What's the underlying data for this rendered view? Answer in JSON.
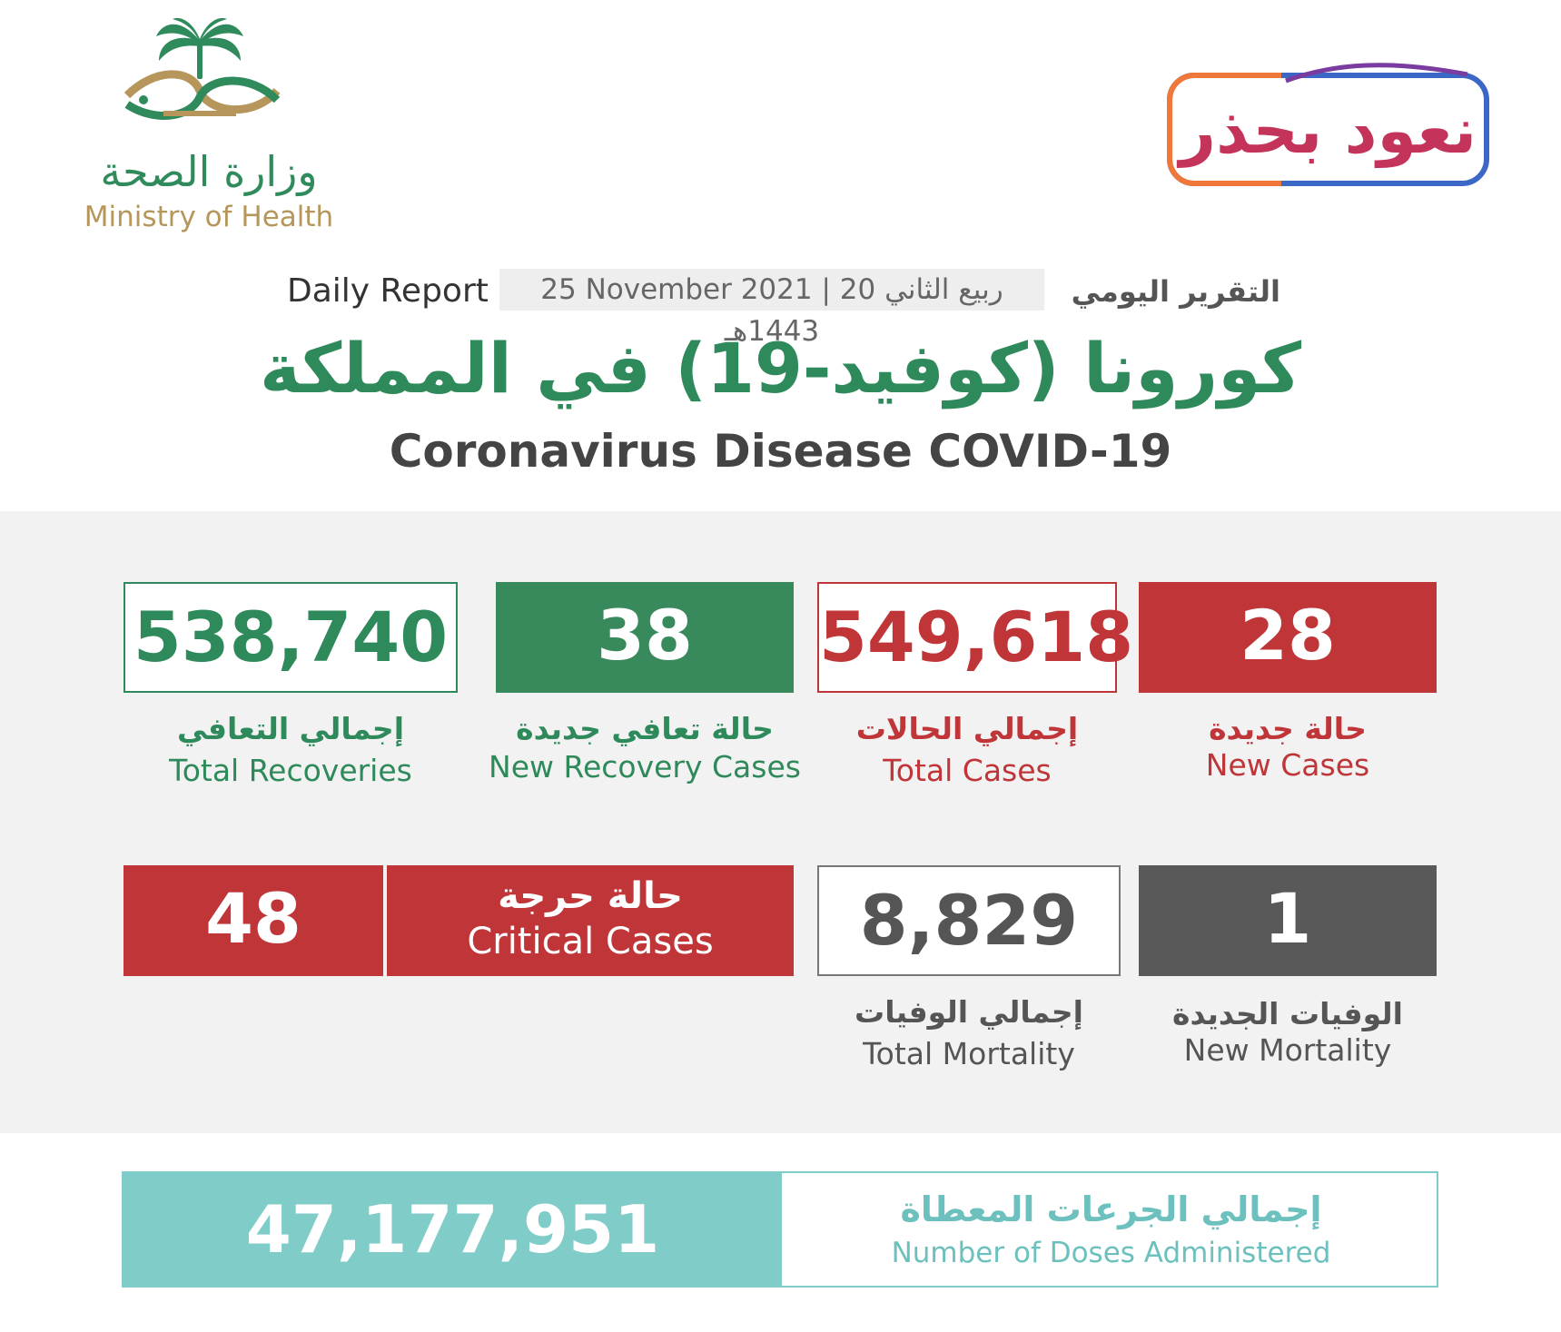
{
  "header": {
    "moh_logo_ar": "وزارة الصحة",
    "moh_logo_en": "Ministry of Health",
    "campaign_logo": "نعود بحذر",
    "daily_report_en": "Daily Report",
    "date": "25 November 2021 | 20 ربيع الثاني 1443هـ",
    "daily_report_ar": "التقرير اليومي",
    "title_ar": "كورونا (كوفيد-19) في المملكة",
    "title_en": "Coronavirus Disease COVID-19"
  },
  "stats": {
    "total_recoveries": {
      "value": "538,740",
      "label_ar": "إجمالي التعافي",
      "label_en": "Total Recoveries"
    },
    "new_recovery_cases": {
      "value": "38",
      "label_ar": "حالة تعافي جديدة",
      "label_en": "New Recovery Cases"
    },
    "total_cases": {
      "value": "549,618",
      "label_ar": "إجمالي الحالات",
      "label_en": "Total Cases"
    },
    "new_cases": {
      "value": "28",
      "label_ar": "حالة جديدة",
      "label_en": "New Cases"
    },
    "critical_cases": {
      "value": "48",
      "label_ar": "حالة حرجة",
      "label_en": "Critical Cases"
    },
    "total_mortality": {
      "value": "8,829",
      "label_ar": "إجمالي الوفيات",
      "label_en": "Total Mortality"
    },
    "new_mortality": {
      "value": "1",
      "label_ar": "الوفيات الجديدة",
      "label_en": "New Mortality"
    }
  },
  "doses": {
    "value": "47,177,951",
    "label_ar": "إجمالي الجرعات المعطاة",
    "label_en": "Number of Doses Administered"
  },
  "colors": {
    "green": "#2e8a5a",
    "red": "#bf3538",
    "dark_gray": "#595959",
    "teal": "#7fccc9"
  }
}
